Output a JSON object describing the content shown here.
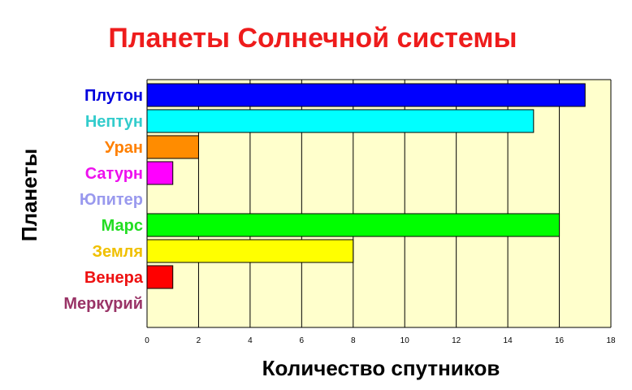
{
  "chart_data": {
    "type": "bar",
    "orientation": "horizontal",
    "title": "Планеты Солнечной системы",
    "xlabel": "Количество спутников",
    "ylabel": "Планеты",
    "categories": [
      "Меркурий",
      "Венера",
      "Земля",
      "Марс",
      "Юпитер",
      "Сатурн",
      "Уран",
      "Нептун",
      "Плутон"
    ],
    "values": [
      0,
      1,
      8,
      16,
      0,
      1,
      2,
      15,
      17
    ],
    "colors": [
      "#993366",
      "#ff0000",
      "#ffff00",
      "#00ff00",
      "#9999ff",
      "#ff00ff",
      "#ff8c00",
      "#00ffff",
      "#0000ff"
    ],
    "label_colors": [
      "#993366",
      "#ee1111",
      "#f0c000",
      "#22dd22",
      "#9999ee",
      "#ee11ee",
      "#ff8000",
      "#33cccc",
      "#0000dd"
    ],
    "xlim": [
      0,
      18
    ],
    "xticks": [
      0,
      2,
      4,
      6,
      8,
      10,
      12,
      14,
      16,
      18
    ],
    "grid": "vertical",
    "plot_background": "#ffffcc",
    "title_color": "#ee1c1c",
    "legend": "none"
  }
}
